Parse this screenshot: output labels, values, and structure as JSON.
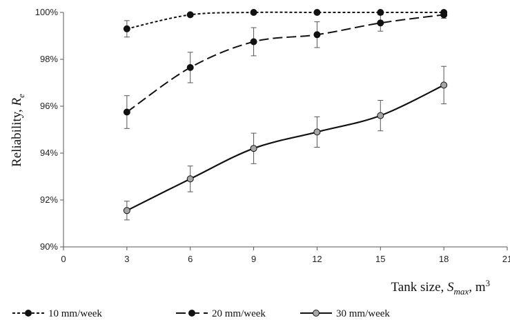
{
  "chart_data": {
    "type": "line",
    "x": [
      3,
      6,
      9,
      12,
      15,
      18
    ],
    "xlim": [
      0,
      21
    ],
    "xticks": [
      "0",
      "3",
      "6",
      "9",
      "12",
      "15",
      "18",
      "21"
    ],
    "ylim": [
      90,
      100
    ],
    "yticks": [
      "90%",
      "92%",
      "94%",
      "96%",
      "98%",
      "100%"
    ],
    "ylabel": {
      "main": "Reliability, ",
      "var": "R",
      "sub": "e"
    },
    "xlabel": {
      "main": "Tank size, ",
      "var": "S",
      "sub": "max",
      "unit": ", m",
      "sup": "3"
    },
    "grid": false,
    "legend_position": "bottom",
    "series": [
      {
        "name": "10 mm/week",
        "values": [
          99.3,
          99.9,
          100,
          100,
          100,
          100
        ],
        "errors": [
          0.35,
          0,
          0,
          0,
          0,
          0
        ],
        "line_style": "short-dash",
        "marker_fill": "#111111"
      },
      {
        "name": "20 mm/week",
        "values": [
          95.75,
          97.65,
          98.75,
          99.05,
          99.55,
          99.9
        ],
        "errors": [
          0.7,
          0.65,
          0.6,
          0.55,
          0.35,
          0.15
        ],
        "line_style": "long-dash",
        "marker_fill": "#111111"
      },
      {
        "name": "30 mm/week",
        "values": [
          91.55,
          92.9,
          94.2,
          94.9,
          95.6,
          96.9
        ],
        "errors": [
          0.4,
          0.55,
          0.65,
          0.65,
          0.65,
          0.8
        ],
        "line_style": "solid",
        "marker_fill": "#a6a6a6"
      }
    ]
  }
}
